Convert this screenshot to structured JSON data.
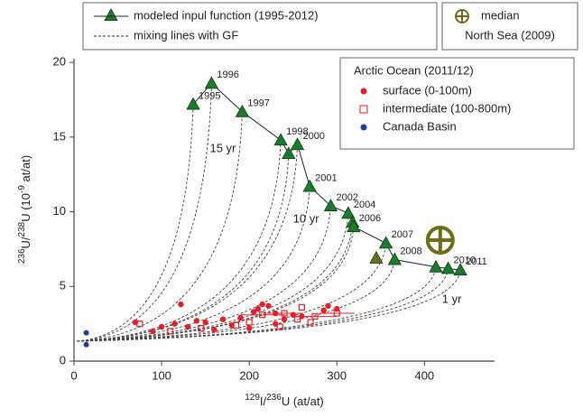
{
  "chart_data": {
    "type": "scatter",
    "xlim": [
      0,
      480
    ],
    "ylim": [
      0,
      20.25
    ],
    "xticks": [
      0,
      100,
      200,
      300,
      400
    ],
    "yticks": [
      0,
      5,
      10,
      15,
      20
    ],
    "xlabel": [
      {
        "text": "129",
        "sup": true
      },
      {
        "text": "I/",
        "sup": false
      },
      {
        "text": "236",
        "sup": true
      },
      {
        "text": "U (at/at)",
        "sup": false
      }
    ],
    "ylabel": [
      {
        "text": "236",
        "sup": true
      },
      {
        "text": "U/",
        "sup": false
      },
      {
        "text": "238",
        "sup": true
      },
      {
        "text": "U (10",
        "sup": false
      },
      {
        "text": "-9",
        "sup": true
      },
      {
        "text": " at/at)",
        "sup": false
      }
    ],
    "mixing_label": "mixing lines with GF",
    "legend_title": "Arctic Ocean (2011/12)",
    "annotations": [
      {
        "text": "15 yr",
        "x": 155,
        "y": 14.2
      },
      {
        "text": "10 yr",
        "x": 250,
        "y": 9.5
      },
      {
        "text": "1 yr",
        "x": 420,
        "y": 4.1
      }
    ],
    "modeled": {
      "name": "modeled inpul function (1995-2012)",
      "color": "#1e7a2c",
      "x": [
        136,
        157,
        192,
        236,
        245,
        255,
        269,
        293,
        313,
        318,
        319,
        356,
        366,
        413,
        427,
        441
      ],
      "y": [
        17.2,
        18.6,
        16.7,
        14.8,
        13.9,
        14.5,
        11.7,
        10.4,
        9.9,
        9.3,
        9.0,
        7.9,
        6.8,
        6.3,
        6.2,
        6.1
      ],
      "labels": [
        "1995",
        "1996",
        "1997",
        "1998",
        null,
        "2000",
        "2001",
        "2002",
        "2004",
        null,
        "2006",
        "2007",
        "2008",
        null,
        "2010",
        "2011"
      ]
    },
    "extra_points": {
      "color": "#6e6e18",
      "x": [
        345
      ],
      "y": [
        6.9
      ]
    },
    "median": {
      "name": "median",
      "name2": "North Sea (2009)",
      "color": "#6e6e18",
      "x": 418,
      "y": 8.1
    },
    "series": [
      {
        "name": "surface (0-100m)",
        "color": "#e0202a",
        "marker": "circle",
        "x": [
          122,
          70,
          100,
          115,
          130,
          150,
          170,
          190,
          205,
          210,
          215,
          222,
          230,
          240,
          250,
          260,
          285,
          290,
          300,
          230,
          160,
          180,
          200,
          140,
          90
        ],
        "y": [
          3.8,
          2.6,
          2.3,
          2.5,
          2.3,
          2.6,
          2.8,
          2.9,
          3.3,
          3.5,
          3.8,
          3.7,
          3.2,
          2.8,
          3.1,
          3.0,
          3.4,
          3.7,
          3.5,
          2.5,
          2.1,
          2.4,
          2.2,
          2.7,
          2.0
        ]
      },
      {
        "name": "intermediate (100-800m)",
        "color": "#e0202a",
        "marker": "square",
        "x": [
          75,
          110,
          145,
          185,
          215,
          240,
          255,
          270,
          275,
          300,
          260,
          235,
          200
        ],
        "y": [
          2.5,
          2.0,
          2.2,
          2.4,
          3.1,
          3.2,
          2.8,
          2.6,
          3.0,
          3.2,
          3.6,
          2.3,
          2.6
        ],
        "xerr": [
          null,
          null,
          null,
          null,
          25,
          20,
          null,
          null,
          25,
          20,
          null,
          null,
          null
        ]
      },
      {
        "name": "Canada Basin",
        "color": "#1a3fa0",
        "marker": "dot",
        "x": [
          14,
          14
        ],
        "y": [
          1.9,
          1.1
        ]
      }
    ]
  }
}
